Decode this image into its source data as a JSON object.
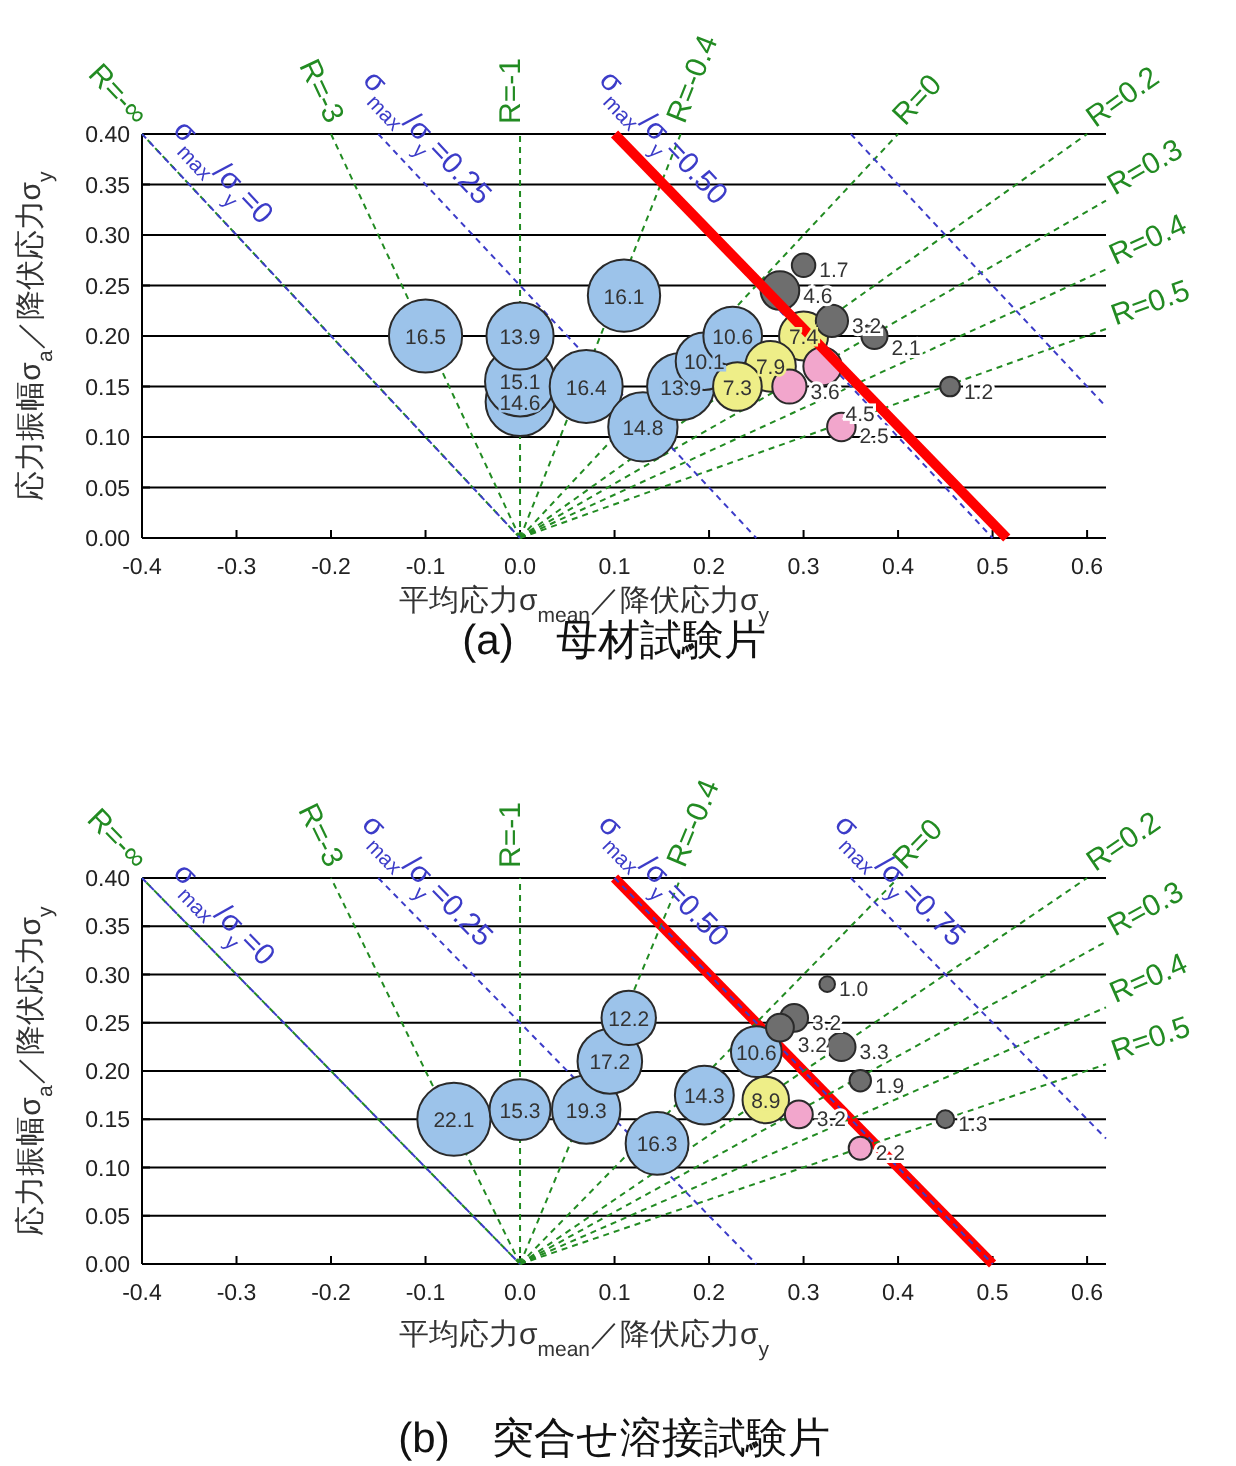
{
  "chart_data": [
    {
      "type": "bubble",
      "title": "(a)　母材試験片",
      "xlabel": "平均応力σ$_{mean}$／降伏応力σ$_{y}$",
      "ylabel": "応力振幅σ$_{a}$／降伏応力σ$_{y}$",
      "xlim": [
        -0.4,
        0.62
      ],
      "ylim": [
        0,
        0.4
      ],
      "xticks": [
        -0.4,
        -0.3,
        -0.2,
        -0.1,
        {
          "value": 0,
          "label": "0.0"
        },
        0.1,
        0.2,
        0.3,
        0.4,
        0.5,
        0.6
      ],
      "yticks": [
        {
          "value": 0,
          "label": "0.00"
        },
        0.05,
        {
          "value": 0.1,
          "label": "0.10"
        },
        0.15,
        {
          "value": 0.2,
          "label": "0.20"
        },
        0.25,
        {
          "value": 0.3,
          "label": "0.30"
        },
        0.35,
        {
          "value": 0.4,
          "label": "0.40"
        }
      ],
      "grid": "y",
      "series": [
        {
          "type": "line",
          "name": "R=-∞",
          "color": "#228b22",
          "line_style": "dashed",
          "x": [
            0,
            -0.4
          ],
          "values": [
            0,
            0.4
          ]
        },
        {
          "type": "line",
          "name": "R=-3",
          "color": "#228b22",
          "line_style": "dashed",
          "x": [
            0,
            -0.2
          ],
          "values": [
            0,
            0.4
          ]
        },
        {
          "type": "line",
          "name": "R=-1",
          "color": "#228b22",
          "line_style": "dashed",
          "x": [
            0,
            0
          ],
          "values": [
            0,
            0.4
          ]
        },
        {
          "type": "line",
          "name": "R=-0.4",
          "color": "#228b22",
          "line_style": "dashed",
          "x": [
            0,
            0.17
          ],
          "values": [
            0,
            0.4
          ]
        },
        {
          "type": "line",
          "name": "R=0",
          "color": "#228b22",
          "line_style": "dashed",
          "x": [
            0,
            0.4
          ],
          "values": [
            0,
            0.4
          ]
        },
        {
          "type": "line",
          "name": "R=0.2",
          "color": "#228b22",
          "line_style": "dashed",
          "x": [
            0,
            0.6
          ],
          "values": [
            0,
            0.4
          ]
        },
        {
          "type": "line",
          "name": "R=0.3",
          "color": "#228b22",
          "line_style": "dashed",
          "x": [
            0,
            0.62
          ],
          "values": [
            0,
            0.334
          ]
        },
        {
          "type": "line",
          "name": "R=0.4",
          "color": "#228b22",
          "line_style": "dashed",
          "x": [
            0,
            0.62
          ],
          "values": [
            0,
            0.266
          ]
        },
        {
          "type": "line",
          "name": "R=0.5",
          "color": "#228b22",
          "line_style": "dashed",
          "x": [
            0,
            0.62
          ],
          "values": [
            0,
            0.207
          ]
        },
        {
          "type": "line",
          "name": "σ$_{max}$/σ$_{y}$=0",
          "color": "#3c3cc8",
          "line_style": "dashed",
          "x": [
            -0.4,
            0
          ],
          "values": [
            0.4,
            0
          ]
        },
        {
          "type": "line",
          "name": "σ$_{max}$/σ$_{y}$=0.25",
          "color": "#3c3cc8",
          "line_style": "dashed",
          "x": [
            -0.15,
            0.25
          ],
          "values": [
            0.4,
            0
          ]
        },
        {
          "type": "line",
          "name": "σ$_{max}$/σ$_{y}$=0.50",
          "color": "#3c3cc8",
          "line_style": "dashed",
          "x": [
            0.1,
            0.5
          ],
          "values": [
            0.4,
            0
          ]
        },
        {
          "type": "line",
          "color": "#3c3cc8",
          "line_style": "dashed",
          "x": [
            0.35,
            0.62
          ],
          "values": [
            0.4,
            0.13
          ]
        },
        {
          "color": "#9cc3ea",
          "x": [
            -0.1,
            0,
            0,
            0,
            0.07,
            0.11,
            0.13,
            0.17,
            0.195,
            0.225
          ],
          "values": [
            0.2,
            0.135,
            0.155,
            0.2,
            0.15,
            0.24,
            0.11,
            0.15,
            0.175,
            0.2
          ],
          "sizes": [
            16.5,
            14.6,
            15.1,
            13.9,
            16.4,
            16.1,
            14.8,
            13.9,
            10.1,
            10.6
          ],
          "value_labels": [
            "16.5",
            "14.6",
            "15.1",
            "13.9",
            "16.4",
            "16.1",
            "14.8",
            "13.9",
            "10.1",
            "10.6"
          ]
        },
        {
          "color": "#eeee88",
          "x": [
            0.3,
            0.265,
            0.23
          ],
          "values": [
            0.2,
            0.17,
            0.15
          ],
          "sizes": [
            7.4,
            7.9,
            7.3
          ],
          "value_labels": [
            "7.4",
            "7.9",
            "7.3"
          ]
        },
        {
          "color": "#f2a6cc",
          "x": [
            0.285,
            0.32,
            0.34
          ],
          "values": [
            0.15,
            0.17,
            0.11
          ],
          "sizes": [
            3.6,
            4.5,
            2.5
          ],
          "value_labels": [
            "3.6",
            "4.5",
            "2.5"
          ]
        },
        {
          "color": "#6e6e6e",
          "x": [
            0.3,
            0.275,
            0.33,
            0.375,
            0.455
          ],
          "values": [
            0.27,
            0.245,
            0.215,
            0.2,
            0.15
          ],
          "sizes": [
            1.7,
            4.6,
            3.2,
            2.1,
            1.2
          ],
          "value_labels": [
            "1.7",
            "4.6",
            "3.2",
            "2.1",
            "1.2"
          ]
        },
        {
          "type": "line",
          "color": "#ff0000",
          "line_style": "solid",
          "x": [
            0.1,
            0.515
          ],
          "values": [
            0.4,
            0
          ]
        }
      ]
    },
    {
      "type": "bubble",
      "title": "(b)　突合せ溶接試験片",
      "xlabel": "平均応力σ$_{mean}$／降伏応力σ$_{y}$",
      "ylabel": "応力振幅σ$_{a}$／降伏応力σ$_{y}$",
      "xlim": [
        -0.4,
        0.62
      ],
      "ylim": [
        0,
        0.4
      ],
      "xticks": [
        -0.4,
        -0.3,
        -0.2,
        -0.1,
        {
          "value": 0,
          "label": "0.0"
        },
        0.1,
        0.2,
        0.3,
        0.4,
        0.5,
        0.6
      ],
      "yticks": [
        {
          "value": 0,
          "label": "0.00"
        },
        0.05,
        {
          "value": 0.1,
          "label": "0.10"
        },
        0.15,
        {
          "value": 0.2,
          "label": "0.20"
        },
        0.25,
        {
          "value": 0.3,
          "label": "0.30"
        },
        0.35,
        {
          "value": 0.4,
          "label": "0.40"
        }
      ],
      "grid": "y",
      "series": [
        {
          "type": "line",
          "color": "#ff0000",
          "line_style": "solid",
          "x": [
            0.1,
            0.5
          ],
          "values": [
            0.4,
            0
          ]
        },
        {
          "type": "line",
          "name": "R=-∞",
          "color": "#228b22",
          "line_style": "dashed",
          "x": [
            0,
            -0.4
          ],
          "values": [
            0,
            0.4
          ]
        },
        {
          "type": "line",
          "name": "R=-3",
          "color": "#228b22",
          "line_style": "dashed",
          "x": [
            0,
            -0.2
          ],
          "values": [
            0,
            0.4
          ]
        },
        {
          "type": "line",
          "name": "R=-1",
          "color": "#228b22",
          "line_style": "dashed",
          "x": [
            0,
            0
          ],
          "values": [
            0,
            0.4
          ]
        },
        {
          "type": "line",
          "name": "R=-0.4",
          "color": "#228b22",
          "line_style": "dashed",
          "x": [
            0,
            0.17
          ],
          "values": [
            0,
            0.4
          ]
        },
        {
          "type": "line",
          "name": "R=0",
          "color": "#228b22",
          "line_style": "dashed",
          "x": [
            0,
            0.4
          ],
          "values": [
            0,
            0.4
          ]
        },
        {
          "type": "line",
          "name": "R=0.2",
          "color": "#228b22",
          "line_style": "dashed",
          "x": [
            0,
            0.6
          ],
          "values": [
            0,
            0.4
          ]
        },
        {
          "type": "line",
          "name": "R=0.3",
          "color": "#228b22",
          "line_style": "dashed",
          "x": [
            0,
            0.62
          ],
          "values": [
            0,
            0.334
          ]
        },
        {
          "type": "line",
          "name": "R=0.4",
          "color": "#228b22",
          "line_style": "dashed",
          "x": [
            0,
            0.62
          ],
          "values": [
            0,
            0.266
          ]
        },
        {
          "type": "line",
          "name": "R=0.5",
          "color": "#228b22",
          "line_style": "dashed",
          "x": [
            0,
            0.62
          ],
          "values": [
            0,
            0.207
          ]
        },
        {
          "type": "line",
          "name": "σ$_{max}$/σ$_{y}$=0",
          "color": "#3c3cc8",
          "line_style": "dashed",
          "x": [
            -0.4,
            0
          ],
          "values": [
            0.4,
            0
          ]
        },
        {
          "type": "line",
          "name": "σ$_{max}$/σ$_{y}$=0.25",
          "color": "#3c3cc8",
          "line_style": "dashed",
          "x": [
            -0.15,
            0.25
          ],
          "values": [
            0.4,
            0
          ]
        },
        {
          "type": "line",
          "name": "σ$_{max}$/σ$_{y}$=0.50",
          "color": "#3c3cc8",
          "line_style": "dashed",
          "x": [
            0.1,
            0.5
          ],
          "values": [
            0.4,
            0
          ]
        },
        {
          "type": "line",
          "name": "σ$_{max}$/σ$_{y}$=0.75",
          "color": "#3c3cc8",
          "line_style": "dashed",
          "x": [
            0.35,
            0.62
          ],
          "values": [
            0.4,
            0.13
          ]
        },
        {
          "color": "#9cc3ea",
          "x": [
            -0.07,
            0,
            0.07,
            0.095,
            0.115,
            0.145,
            0.195,
            0.25
          ],
          "values": [
            0.15,
            0.16,
            0.16,
            0.21,
            0.255,
            0.125,
            0.175,
            0.22
          ],
          "sizes": [
            22.1,
            15.3,
            19.3,
            17.2,
            12.2,
            16.3,
            14.3,
            10.6
          ],
          "value_labels": [
            "22.1",
            "15.3",
            "19.3",
            "17.2",
            "12.2",
            "16.3",
            "14.3",
            "10.6"
          ]
        },
        {
          "color": "#eeee88",
          "x": [
            0.26
          ],
          "values": [
            0.17
          ],
          "sizes": [
            8.9
          ],
          "value_labels": [
            "8.9"
          ]
        },
        {
          "color": "#f2a6cc",
          "x": [
            0.295,
            0.36
          ],
          "values": [
            0.155,
            0.12
          ],
          "sizes": [
            3.2,
            2.2
          ],
          "value_labels": [
            "3.2",
            "2.2"
          ]
        },
        {
          "color": "#6e6e6e",
          "x": [
            0.325,
            0.29,
            0.275,
            0.34,
            0.36,
            0.45
          ],
          "values": [
            0.29,
            0.255,
            0.245,
            0.225,
            0.19,
            0.15
          ],
          "sizes": [
            1.0,
            3.2,
            3.2,
            3.3,
            1.9,
            1.3
          ],
          "value_labels": [
            "1.0",
            "3.2",
            "3.2",
            "3.3",
            "1.9",
            "1.3"
          ]
        }
      ]
    }
  ]
}
